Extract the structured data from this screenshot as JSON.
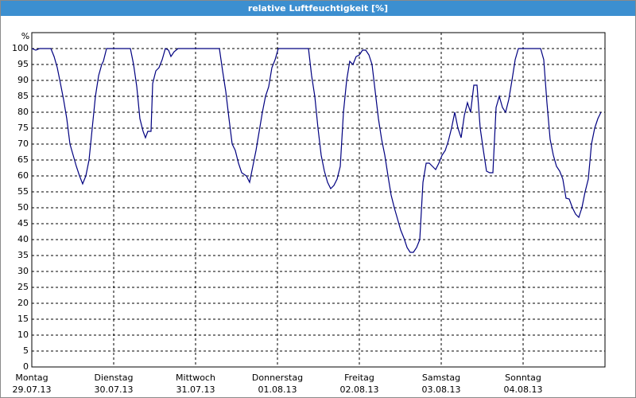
{
  "chart_data": {
    "type": "line",
    "title": "relative Luftfeuchtigkeit [%]",
    "ylabel": "%",
    "xlim": [
      0,
      7
    ],
    "ylim": [
      0,
      105
    ],
    "yticks": [
      0,
      5,
      10,
      15,
      20,
      25,
      30,
      35,
      40,
      45,
      50,
      55,
      60,
      65,
      70,
      75,
      80,
      85,
      90,
      95,
      100
    ],
    "xticks": [
      {
        "value": 0,
        "label": "Montag",
        "date": "29.07.13"
      },
      {
        "value": 1,
        "label": "Dienstag",
        "date": "30.07.13"
      },
      {
        "value": 2,
        "label": "Mittwoch",
        "date": "31.07.13"
      },
      {
        "value": 3,
        "label": "Donnerstag",
        "date": "01.08.13"
      },
      {
        "value": 4,
        "label": "Freitag",
        "date": "02.08.13"
      },
      {
        "value": 5,
        "label": "Samstag",
        "date": "03.08.13"
      },
      {
        "value": 6,
        "label": "Sonntag",
        "date": "04.08.13"
      }
    ],
    "grid": true,
    "x": [
      0,
      0.049,
      0.097,
      0.233,
      0.272,
      0.311,
      0.35,
      0.388,
      0.427,
      0.466,
      0.505,
      0.544,
      0.583,
      0.621,
      0.66,
      0.699,
      0.738,
      0.777,
      0.816,
      0.854,
      0.874,
      0.913,
      1.204,
      1.243,
      1.282,
      1.32,
      1.359,
      1.388,
      1.417,
      1.456,
      1.476,
      1.515,
      1.553,
      1.592,
      1.631,
      1.67,
      1.699,
      1.738,
      1.786,
      2.291,
      2.33,
      2.369,
      2.408,
      2.447,
      2.485,
      2.524,
      2.563,
      2.621,
      2.66,
      2.699,
      2.738,
      2.777,
      2.816,
      2.854,
      2.893,
      2.932,
      2.971,
      3.01,
      3.379,
      3.417,
      3.456,
      3.495,
      3.534,
      3.573,
      3.612,
      3.65,
      3.689,
      3.728,
      3.767,
      3.806,
      3.845,
      3.883,
      3.922,
      3.961,
      4.0,
      4.039,
      4.078,
      4.117,
      4.155,
      4.194,
      4.233,
      4.272,
      4.311,
      4.35,
      4.388,
      4.427,
      4.466,
      4.505,
      4.544,
      4.583,
      4.621,
      4.66,
      4.699,
      4.738,
      4.777,
      4.816,
      4.854,
      4.893,
      4.932,
      4.971,
      5.01,
      5.049,
      5.087,
      5.126,
      5.165,
      5.204,
      5.243,
      5.282,
      5.32,
      5.359,
      5.398,
      5.437,
      5.476,
      5.515,
      5.553,
      5.592,
      5.631,
      5.67,
      5.709,
      5.748,
      5.786,
      5.825,
      5.864,
      5.903,
      5.942,
      6.214,
      6.252,
      6.291,
      6.33,
      6.369,
      6.408,
      6.447,
      6.485,
      6.524,
      6.563,
      6.602,
      6.641,
      6.68,
      6.718,
      6.757,
      6.796,
      6.835,
      6.874,
      6.913,
      6.951
    ],
    "series": [
      {
        "color": "#000080",
        "values": [
          100,
          99.5,
          100,
          100,
          97.5,
          94,
          89,
          84,
          78,
          70,
          66.5,
          63,
          60,
          57.5,
          60,
          65,
          75,
          85,
          91.5,
          95,
          96,
          100,
          100,
          95,
          88,
          78,
          74,
          72,
          74,
          74,
          89,
          93,
          94,
          96.5,
          100,
          99.5,
          97.5,
          99,
          100,
          100,
          93,
          86.5,
          78,
          70,
          68,
          64,
          61,
          60,
          58,
          63,
          68,
          74,
          80,
          85,
          88,
          94,
          96.5,
          100,
          100,
          91.5,
          85,
          75,
          66.5,
          61.5,
          58,
          56,
          57,
          59,
          63,
          80,
          90,
          96,
          95,
          97.5,
          98,
          99.5,
          99.5,
          98,
          95,
          86.5,
          78,
          71.5,
          66.5,
          60,
          54,
          50,
          46.5,
          43,
          40.5,
          37.5,
          36,
          36,
          37.5,
          40,
          58,
          64,
          64,
          63,
          62,
          64,
          66.5,
          68,
          71,
          75,
          80,
          75,
          72,
          79,
          83,
          80,
          88.5,
          88.5,
          75,
          68,
          61.5,
          61,
          61,
          81.5,
          85,
          81.5,
          80,
          84,
          90,
          96.5,
          100,
          100,
          96.5,
          83,
          71.5,
          66.5,
          63,
          61.5,
          59,
          53,
          52.75,
          50,
          48,
          47,
          50,
          55,
          59,
          70,
          75,
          78,
          80
        ]
      }
    ]
  }
}
